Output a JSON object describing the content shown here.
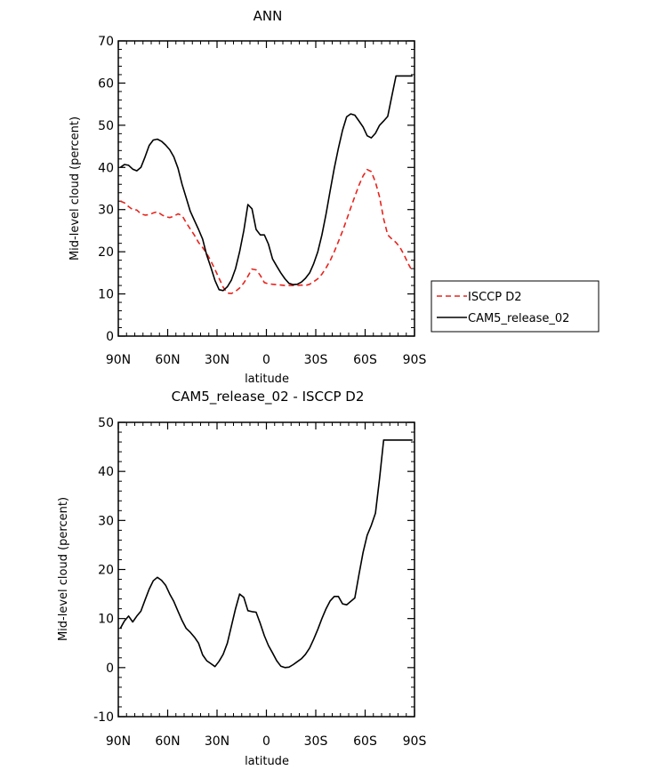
{
  "chart_data": [
    {
      "type": "line",
      "title": "ANN",
      "xlabel": "latitude",
      "ylabel": "Mid-level cloud (percent)",
      "xlim": [
        -90,
        90
      ],
      "ylim": [
        0,
        70
      ],
      "xticks": [
        "90N",
        "60N",
        "30N",
        "0",
        "30S",
        "60S",
        "90S"
      ],
      "yticks": [
        "0",
        "10",
        "20",
        "30",
        "40",
        "50",
        "60",
        "70"
      ],
      "legend_position": "right",
      "series": [
        {
          "name": "ISCCP D2",
          "color": "#e8231c",
          "dash": "dashed",
          "x": [
            -88.75,
            -86.25,
            -83.75,
            -81.25,
            -78.75,
            -76.25,
            -73.75,
            -71.25,
            -68.75,
            -66.25,
            -63.75,
            -61.25,
            -58.75,
            -56.25,
            -53.75,
            -51.25,
            -48.75,
            -46.25,
            -43.75,
            -41.25,
            -38.75,
            -36.25,
            -33.75,
            -31.25,
            -28.75,
            -26.25,
            -23.75,
            -21.25,
            -18.75,
            -16.25,
            -13.75,
            -11.25,
            -8.75,
            -6.25,
            -3.75,
            -1.25,
            1.25,
            3.75,
            6.25,
            8.75,
            11.25,
            13.75,
            16.25,
            18.75,
            21.25,
            23.75,
            26.25,
            28.75,
            31.25,
            33.75,
            36.25,
            38.75,
            41.25,
            43.75,
            46.25,
            48.75,
            51.25,
            53.75,
            56.25,
            58.75,
            61.25,
            63.75,
            66.25,
            68.75,
            71.25,
            73.75,
            76.25,
            78.75,
            81.25,
            83.75,
            86.25,
            88.75
          ],
          "values": [
            32.0,
            31.6,
            30.7,
            30.0,
            29.9,
            29.0,
            28.7,
            28.8,
            29.2,
            29.5,
            28.8,
            28.3,
            28.1,
            28.4,
            29.0,
            28.6,
            26.9,
            25.4,
            23.9,
            22.2,
            21.0,
            19.6,
            17.8,
            15.8,
            13.7,
            11.6,
            10.2,
            10.1,
            10.6,
            11.4,
            12.6,
            14.2,
            15.9,
            15.7,
            14.4,
            12.7,
            12.4,
            12.3,
            12.2,
            12.1,
            12.0,
            12.0,
            12.0,
            12.0,
            12.1,
            12.0,
            12.3,
            12.9,
            13.6,
            14.7,
            16.2,
            17.9,
            20.0,
            22.4,
            24.9,
            27.6,
            30.4,
            33.1,
            35.8,
            38.0,
            39.5,
            39.0,
            36.5,
            33.0,
            27.8,
            24.0,
            23.0,
            22.2,
            21.0,
            19.2,
            17.1,
            15.3
          ]
        },
        {
          "name": "CAM5_release_02",
          "color": "#000000",
          "dash": "solid",
          "x": [
            -88.75,
            -86.25,
            -83.75,
            -81.25,
            -78.75,
            -76.25,
            -73.75,
            -71.25,
            -68.75,
            -66.25,
            -63.75,
            -61.25,
            -58.75,
            -56.25,
            -53.75,
            -51.25,
            -48.75,
            -46.25,
            -43.75,
            -41.25,
            -38.75,
            -36.25,
            -33.75,
            -31.25,
            -28.75,
            -26.25,
            -23.75,
            -21.25,
            -18.75,
            -16.25,
            -13.75,
            -11.25,
            -8.75,
            -6.25,
            -3.75,
            -1.25,
            1.25,
            3.75,
            6.25,
            8.75,
            11.25,
            13.75,
            16.25,
            18.75,
            21.25,
            23.75,
            26.25,
            28.75,
            31.25,
            33.75,
            36.25,
            38.75,
            41.25,
            43.75,
            46.25,
            48.75,
            51.25,
            53.75,
            56.25,
            58.75,
            61.25,
            63.75,
            66.25,
            68.75,
            71.25,
            73.75,
            76.25,
            78.75,
            81.25,
            83.75,
            86.25,
            88.75
          ],
          "values": [
            40.0,
            40.7,
            40.5,
            39.6,
            39.2,
            40.0,
            42.5,
            45.2,
            46.5,
            46.7,
            46.2,
            45.3,
            44.2,
            42.5,
            39.8,
            36.0,
            32.8,
            29.6,
            27.4,
            25.3,
            23.0,
            19.2,
            16.3,
            13.2,
            11.0,
            10.8,
            11.7,
            13.3,
            16.0,
            20.0,
            25.0,
            31.2,
            30.2,
            25.3,
            24.0,
            24.0,
            21.8,
            18.3,
            16.6,
            15.0,
            13.6,
            12.5,
            12.2,
            12.3,
            12.8,
            13.7,
            15.0,
            17.2,
            20.0,
            24.0,
            29.0,
            34.5,
            39.8,
            44.5,
            48.8,
            52.0,
            52.7,
            52.4,
            51.0,
            49.6,
            47.5,
            47.0,
            48.1,
            50.0,
            51.0,
            52.1,
            57.0,
            61.7,
            61.7,
            61.7,
            61.7,
            61.7
          ]
        }
      ]
    },
    {
      "type": "line",
      "title": "CAM5_release_02 - ISCCP D2",
      "xlabel": "latitude",
      "ylabel": "Mid-level cloud (percent)",
      "xlim": [
        -90,
        90
      ],
      "ylim": [
        -10,
        50
      ],
      "xticks": [
        "90N",
        "60N",
        "30N",
        "0",
        "30S",
        "60S",
        "90S"
      ],
      "yticks": [
        "-10",
        "0",
        "10",
        "20",
        "30",
        "40",
        "50"
      ],
      "series": [
        {
          "color": "#000000",
          "dash": "solid",
          "x": [
            -88.75,
            -86.25,
            -83.75,
            -81.25,
            -78.75,
            -76.25,
            -73.75,
            -71.25,
            -68.75,
            -66.25,
            -63.75,
            -61.25,
            -58.75,
            -56.25,
            -53.75,
            -51.25,
            -48.75,
            -46.25,
            -43.75,
            -41.25,
            -38.75,
            -36.25,
            -33.75,
            -31.25,
            -28.75,
            -26.25,
            -23.75,
            -21.25,
            -18.75,
            -16.25,
            -13.75,
            -11.25,
            -8.75,
            -6.25,
            -3.75,
            -1.25,
            1.25,
            3.75,
            6.25,
            8.75,
            11.25,
            13.75,
            16.25,
            18.75,
            21.25,
            23.75,
            26.25,
            28.75,
            31.25,
            33.75,
            36.25,
            38.75,
            41.25,
            43.75,
            46.25,
            48.75,
            51.25,
            53.75,
            56.25,
            58.75,
            61.25,
            63.75,
            66.25,
            68.75,
            71.25,
            73.75,
            76.25,
            78.75,
            81.25,
            83.75,
            86.25,
            88.75
          ],
          "values": [
            8.0,
            9.5,
            10.5,
            9.3,
            10.5,
            11.5,
            13.8,
            16.0,
            17.7,
            18.4,
            17.8,
            16.8,
            15.0,
            13.5,
            11.5,
            9.6,
            8.0,
            7.2,
            6.2,
            5.0,
            2.6,
            1.4,
            0.8,
            0.2,
            1.3,
            2.7,
            5.0,
            8.5,
            12.0,
            15.0,
            14.3,
            11.6,
            11.4,
            11.3,
            9.0,
            6.5,
            4.5,
            3.0,
            1.4,
            0.3,
            0.0,
            0.1,
            0.6,
            1.2,
            1.8,
            2.7,
            4.0,
            5.8,
            7.8,
            10.0,
            12.0,
            13.6,
            14.5,
            14.5,
            13.0,
            12.8,
            13.5,
            14.2,
            19.0,
            23.5,
            27.0,
            29.0,
            31.5,
            38.5,
            46.4,
            46.4,
            46.4,
            46.4,
            46.4,
            46.4,
            46.4,
            46.4
          ]
        }
      ]
    }
  ]
}
